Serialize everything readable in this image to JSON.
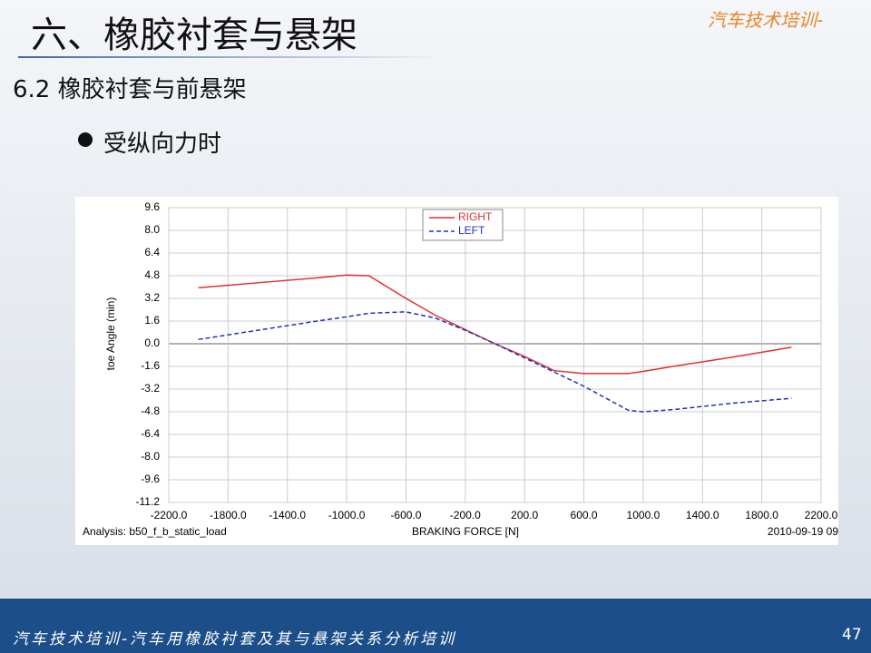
{
  "slide": {
    "title": "六、橡胶衬套与悬架",
    "brand": "汽车技术培训-",
    "subtitle": "6.2 橡胶衬套与前悬架",
    "bullet": "受纵向力时",
    "footer": "汽车技术培训-汽车用橡胶衬套及其与悬架关系分析培训",
    "page": "47"
  },
  "chart_data": {
    "type": "line",
    "ylabel": "toe Angle (min)",
    "xlabel": "BRAKING FORCE [N]",
    "analysis": "Analysis:  b50_f_b_static_load",
    "timestamp": "2010-09-19 09",
    "x": [
      -2000,
      -1600,
      -1200,
      -1000,
      -850,
      -600,
      -400,
      -200,
      0,
      200,
      400,
      600,
      900,
      1000,
      1200,
      1600,
      2000
    ],
    "series": [
      {
        "name": "RIGHT",
        "color": "#e03030",
        "dash": false,
        "values": [
          3.95,
          4.3,
          4.65,
          4.85,
          4.8,
          3.2,
          2.0,
          1.0,
          0,
          -0.9,
          -1.9,
          -2.1,
          -2.1,
          -1.95,
          -1.6,
          -0.95,
          -0.25
        ]
      },
      {
        "name": "LEFT",
        "color": "#2030c0",
        "dash": true,
        "values": [
          0.3,
          0.95,
          1.6,
          1.9,
          2.15,
          2.25,
          1.8,
          0.95,
          0,
          -1.0,
          -2.0,
          -3.0,
          -4.7,
          -4.8,
          -4.65,
          -4.2,
          -3.85
        ]
      }
    ],
    "xlim": [
      -2200,
      2200
    ],
    "xticks": [
      {
        "value": -2200,
        "label": "-2200.0"
      },
      {
        "value": -1800,
        "label": "-1800.0"
      },
      {
        "value": -1400,
        "label": "-1400.0"
      },
      {
        "value": -1000,
        "label": "-1000.0"
      },
      {
        "value": -600,
        "label": "-600.0"
      },
      {
        "value": -200,
        "label": "-200.0"
      },
      {
        "value": 200,
        "label": "200.0"
      },
      {
        "value": 600,
        "label": "600.0"
      },
      {
        "value": 1000,
        "label": "1000.0"
      },
      {
        "value": 1400,
        "label": "1400.0"
      },
      {
        "value": 1800,
        "label": "1800.0"
      },
      {
        "value": 2200,
        "label": "2200.0"
      }
    ],
    "ylim": [
      -11.2,
      9.6
    ],
    "yticks": [
      9.6,
      {
        "value": 8,
        "label": "8.0"
      },
      6.4,
      4.8,
      3.2,
      1.6,
      {
        "value": 0,
        "label": "0.0"
      },
      -1.6,
      -3.2,
      -4.8,
      -6.4,
      {
        "value": -8,
        "label": "-8.0"
      },
      -9.6,
      -11.2
    ],
    "grid": true
  }
}
